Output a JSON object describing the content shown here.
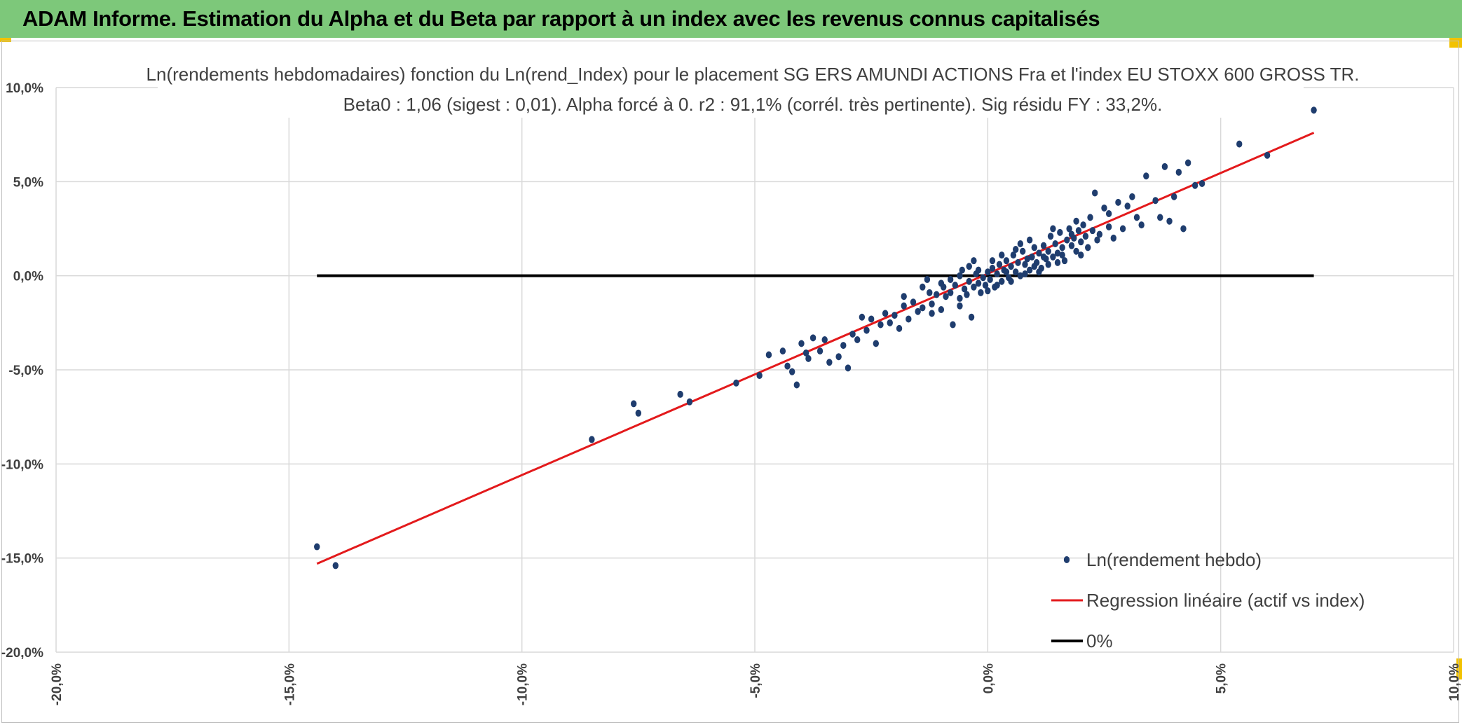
{
  "header": {
    "title": "ADAM Informe. Estimation du Alpha et du Beta par rapport à un index avec les revenus connus capitalisés"
  },
  "colors": {
    "banner": "#7dc87a",
    "corner_marks": "#f2c200",
    "points": "#1f3d6e",
    "regression": "#e31a1c",
    "zero_line": "#000000",
    "grid": "#d9d9d9"
  },
  "chart_data": {
    "type": "scatter",
    "title": "Ln(rendements hebdomadaires) fonction du Ln(rend_Index) pour le placement SG ERS AMUNDI ACTIONS Fra et l'index EU STOXX 600 GROSS TR.",
    "subtitle": "Beta0 : 1,06 (sigest : 0,01). Alpha forcé à 0. r2 : 91,1% (corrél. très pertinente). Sig résidu FY : 33,2%.",
    "xlabel": "",
    "ylabel": "",
    "xlim": [
      -20,
      10
    ],
    "ylim": [
      -20,
      10
    ],
    "x_ticks": [
      "-20,0%",
      "-15,0%",
      "-10,0%",
      "-5,0%",
      "0,0%",
      "5,0%",
      "10,0%"
    ],
    "y_ticks": [
      "10,0%",
      "5,0%",
      "0,0%",
      "-5,0%",
      "-10,0%",
      "-15,0%",
      "-20,0%"
    ],
    "grid": true,
    "legend_position": "bottom-right",
    "series": [
      {
        "name": "Ln(rendement hebdo)",
        "kind": "scatter",
        "points": [
          [
            -14.4,
            -14.4
          ],
          [
            -14.0,
            -15.4
          ],
          [
            -8.5,
            -8.7
          ],
          [
            -7.6,
            -6.8
          ],
          [
            -7.5,
            -7.3
          ],
          [
            -6.6,
            -6.3
          ],
          [
            -6.4,
            -6.7
          ],
          [
            -5.4,
            -5.7
          ],
          [
            -4.9,
            -5.3
          ],
          [
            -4.7,
            -4.2
          ],
          [
            -4.4,
            -4.0
          ],
          [
            -4.3,
            -4.8
          ],
          [
            -4.2,
            -5.1
          ],
          [
            -4.1,
            -5.8
          ],
          [
            -4.0,
            -3.6
          ],
          [
            -3.9,
            -4.1
          ],
          [
            -3.85,
            -4.4
          ],
          [
            -3.75,
            -3.3
          ],
          [
            -3.6,
            -4.0
          ],
          [
            -3.5,
            -3.4
          ],
          [
            -3.4,
            -4.6
          ],
          [
            -3.2,
            -4.3
          ],
          [
            -3.1,
            -3.7
          ],
          [
            -3.0,
            -4.9
          ],
          [
            -2.9,
            -3.1
          ],
          [
            -2.8,
            -3.4
          ],
          [
            -2.6,
            -2.9
          ],
          [
            -2.5,
            -2.3
          ],
          [
            -2.4,
            -3.6
          ],
          [
            -2.3,
            -2.6
          ],
          [
            -2.2,
            -2.0
          ],
          [
            -2.1,
            -2.5
          ],
          [
            -2.0,
            -2.1
          ],
          [
            -1.9,
            -2.8
          ],
          [
            -1.8,
            -1.6
          ],
          [
            -1.7,
            -2.3
          ],
          [
            -1.6,
            -1.4
          ],
          [
            -1.5,
            -1.9
          ],
          [
            -1.4,
            -1.7
          ],
          [
            -1.3,
            -0.2
          ],
          [
            -1.25,
            -0.9
          ],
          [
            -1.2,
            -1.5
          ],
          [
            -1.1,
            -1.0
          ],
          [
            -1.0,
            -1.8
          ],
          [
            -0.95,
            -0.6
          ],
          [
            -0.9,
            -1.1
          ],
          [
            -0.8,
            -0.9
          ],
          [
            -0.75,
            -2.6
          ],
          [
            -0.7,
            -0.5
          ],
          [
            -0.6,
            -1.2
          ],
          [
            -0.55,
            0.3
          ],
          [
            -0.5,
            -0.7
          ],
          [
            -0.45,
            -1.0
          ],
          [
            -0.4,
            -0.3
          ],
          [
            -0.35,
            -2.2
          ],
          [
            -0.3,
            -0.6
          ],
          [
            -0.25,
            0.1
          ],
          [
            -0.2,
            -0.4
          ],
          [
            -0.15,
            -0.9
          ],
          [
            -0.1,
            -0.1
          ],
          [
            -0.05,
            -0.5
          ],
          [
            0.0,
            0.2
          ],
          [
            0.05,
            -0.2
          ],
          [
            0.1,
            0.4
          ],
          [
            0.15,
            -0.6
          ],
          [
            0.2,
            0.1
          ],
          [
            0.25,
            0.6
          ],
          [
            0.3,
            -0.3
          ],
          [
            0.35,
            0.3
          ],
          [
            0.4,
            0.8
          ],
          [
            0.45,
            -0.1
          ],
          [
            0.5,
            0.5
          ],
          [
            0.55,
            1.1
          ],
          [
            0.6,
            0.2
          ],
          [
            0.65,
            0.7
          ],
          [
            0.7,
            0.0
          ],
          [
            0.75,
            1.3
          ],
          [
            0.8,
            0.6
          ],
          [
            0.85,
            0.9
          ],
          [
            0.9,
            0.3
          ],
          [
            0.95,
            1.0
          ],
          [
            1.0,
            1.5
          ],
          [
            1.05,
            0.7
          ],
          [
            1.1,
            1.2
          ],
          [
            1.15,
            0.4
          ],
          [
            1.2,
            1.6
          ],
          [
            1.25,
            0.9
          ],
          [
            1.3,
            1.3
          ],
          [
            1.35,
            2.1
          ],
          [
            1.4,
            1.0
          ],
          [
            1.45,
            1.7
          ],
          [
            1.5,
            1.2
          ],
          [
            1.55,
            2.3
          ],
          [
            1.6,
            1.5
          ],
          [
            1.65,
            0.8
          ],
          [
            1.7,
            1.9
          ],
          [
            1.75,
            2.5
          ],
          [
            1.8,
            1.6
          ],
          [
            1.85,
            2.0
          ],
          [
            1.9,
            1.3
          ],
          [
            1.95,
            2.4
          ],
          [
            2.0,
            1.8
          ],
          [
            2.05,
            2.7
          ],
          [
            2.1,
            2.1
          ],
          [
            2.15,
            1.5
          ],
          [
            2.2,
            3.1
          ],
          [
            2.25,
            2.4
          ],
          [
            2.3,
            4.4
          ],
          [
            2.35,
            1.9
          ],
          [
            2.4,
            2.2
          ],
          [
            2.5,
            3.6
          ],
          [
            2.6,
            2.6
          ],
          [
            2.7,
            2.0
          ],
          [
            2.8,
            3.9
          ],
          [
            2.9,
            2.5
          ],
          [
            3.0,
            3.7
          ],
          [
            3.1,
            4.2
          ],
          [
            3.2,
            3.1
          ],
          [
            3.3,
            2.7
          ],
          [
            3.4,
            5.3
          ],
          [
            3.6,
            4.0
          ],
          [
            3.7,
            3.1
          ],
          [
            3.8,
            5.8
          ],
          [
            3.9,
            2.9
          ],
          [
            4.0,
            4.2
          ],
          [
            4.1,
            5.5
          ],
          [
            4.2,
            2.5
          ],
          [
            4.3,
            6.0
          ],
          [
            4.45,
            4.8
          ],
          [
            4.6,
            4.9
          ],
          [
            5.4,
            7.0
          ],
          [
            6.0,
            6.4
          ],
          [
            7.0,
            8.8
          ],
          [
            -0.8,
            -0.2
          ],
          [
            -0.6,
            0.0
          ],
          [
            -0.4,
            0.5
          ],
          [
            -0.2,
            0.3
          ],
          [
            0.0,
            -0.8
          ],
          [
            0.2,
            -0.5
          ],
          [
            0.4,
            0.2
          ],
          [
            0.6,
            1.4
          ],
          [
            0.8,
            0.1
          ],
          [
            1.0,
            0.5
          ],
          [
            1.2,
            1.0
          ],
          [
            1.4,
            2.5
          ],
          [
            1.6,
            1.1
          ],
          [
            1.8,
            2.2
          ],
          [
            2.0,
            1.1
          ],
          [
            -1.4,
            -0.6
          ],
          [
            -1.0,
            -0.4
          ],
          [
            -0.6,
            -1.6
          ],
          [
            0.3,
            1.1
          ],
          [
            0.7,
            1.7
          ],
          [
            1.1,
            0.2
          ],
          [
            1.5,
            0.7
          ],
          [
            1.9,
            2.9
          ],
          [
            2.6,
            3.3
          ],
          [
            -2.7,
            -2.2
          ],
          [
            -1.8,
            -1.1
          ],
          [
            -1.2,
            -2.0
          ],
          [
            -0.3,
            0.8
          ],
          [
            0.1,
            0.8
          ],
          [
            0.5,
            -0.3
          ],
          [
            0.9,
            1.9
          ],
          [
            1.3,
            0.6
          ]
        ]
      },
      {
        "name": "Regression linéaire (actif vs index)",
        "kind": "line",
        "points": [
          [
            -14.4,
            -15.3
          ],
          [
            7.0,
            7.6
          ]
        ]
      },
      {
        "name": "0%",
        "kind": "line",
        "points": [
          [
            -14.4,
            0
          ],
          [
            7.0,
            0
          ]
        ]
      }
    ]
  }
}
